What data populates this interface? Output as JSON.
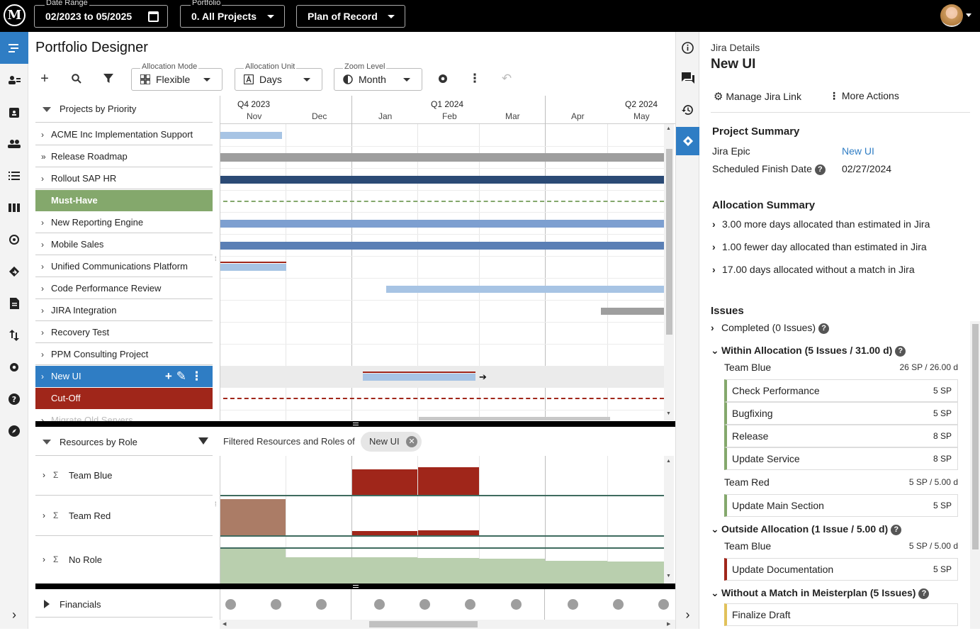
{
  "topbar": {
    "date_range_label": "Date Range",
    "date_range_value": "02/2023 to 05/2025",
    "portfolio_label": "Portfolio",
    "portfolio_value": "0. All Projects",
    "plan_value": "Plan of Record"
  },
  "page": {
    "title": "Portfolio Designer"
  },
  "toolbar": {
    "allocation_mode_label": "Allocation Mode",
    "allocation_mode_value": "Flexible",
    "allocation_unit_label": "Allocation Unit",
    "allocation_unit_value": "Days",
    "zoom_level_label": "Zoom Level",
    "zoom_level_value": "Month"
  },
  "timeline": {
    "quarters": [
      "Q4 2023",
      "Q1 2024",
      "Q2 2024"
    ],
    "months": [
      "Nov",
      "Dec",
      "Jan",
      "Feb",
      "Mar",
      "Apr",
      "May"
    ]
  },
  "projects": {
    "header": "Projects by Priority",
    "rows": [
      "ACME Inc Implementation Support",
      "Release Roadmap",
      "Rollout SAP HR",
      "Must-Have",
      "New Reporting Engine",
      "Mobile Sales",
      "Unified Communications Platform",
      "Code Performance Review",
      "JIRA Integration",
      "Recovery Test",
      "PPM Consulting Project",
      "New UI",
      "Cut-Off",
      "Migrate Old Servers"
    ]
  },
  "resources": {
    "header": "Resources by Role",
    "filtered_label": "Filtered Resources and Roles of",
    "chip": "New UI",
    "rows": [
      "Team Blue",
      "Team Red",
      "No Role"
    ]
  },
  "financials": {
    "label": "Financials"
  },
  "details": {
    "small_title": "Jira Details",
    "title": "New UI",
    "manage_link": "Manage Jira Link",
    "more_actions": "More Actions",
    "project_summary": "Project Summary",
    "jira_epic_label": "Jira Epic",
    "jira_epic_value": "New UI",
    "finish_label": "Scheduled Finish Date",
    "finish_value": "02/27/2024",
    "allocation_summary": "Allocation Summary",
    "alloc_items": [
      "3.00 more days allocated than estimated in Jira",
      "1.00 fewer day allocated than estimated in Jira",
      "17.00 days allocated without a match in Jira"
    ],
    "issues": "Issues",
    "completed": "Completed (0 Issues)",
    "within": "Within Allocation (5 Issues / 31.00 d)",
    "within_team1": "Team Blue",
    "within_team1_sp": "26 SP / 26.00 d",
    "within_team1_issues": [
      {
        "name": "Check Performance",
        "sp": "5 SP"
      },
      {
        "name": "Bugfixing",
        "sp": "5 SP"
      },
      {
        "name": "Release",
        "sp": "8 SP"
      },
      {
        "name": "Update Service",
        "sp": "8 SP"
      }
    ],
    "within_team2": "Team Red",
    "within_team2_sp": "5 SP / 5.00 d",
    "within_team2_issues": [
      {
        "name": "Update Main Section",
        "sp": "5 SP"
      }
    ],
    "outside": "Outside Allocation (1 Issue / 5.00 d)",
    "outside_team": "Team Blue",
    "outside_team_sp": "5 SP / 5.00 d",
    "outside_issues": [
      {
        "name": "Update Documentation",
        "sp": "5 SP"
      }
    ],
    "without": "Without a Match in Meisterplan (5 Issues)",
    "without_issues": [
      {
        "name": "Finalize Draft"
      }
    ]
  },
  "colors": {
    "accent": "#2f7dc4",
    "must_have": "#84a86c",
    "cut_off": "#a0261a",
    "bar_light": "#a7c4e4",
    "bar_mid": "#7d9fd0",
    "bar_dark": "#2b4a75",
    "bar_gray": "#9e9e9e"
  }
}
